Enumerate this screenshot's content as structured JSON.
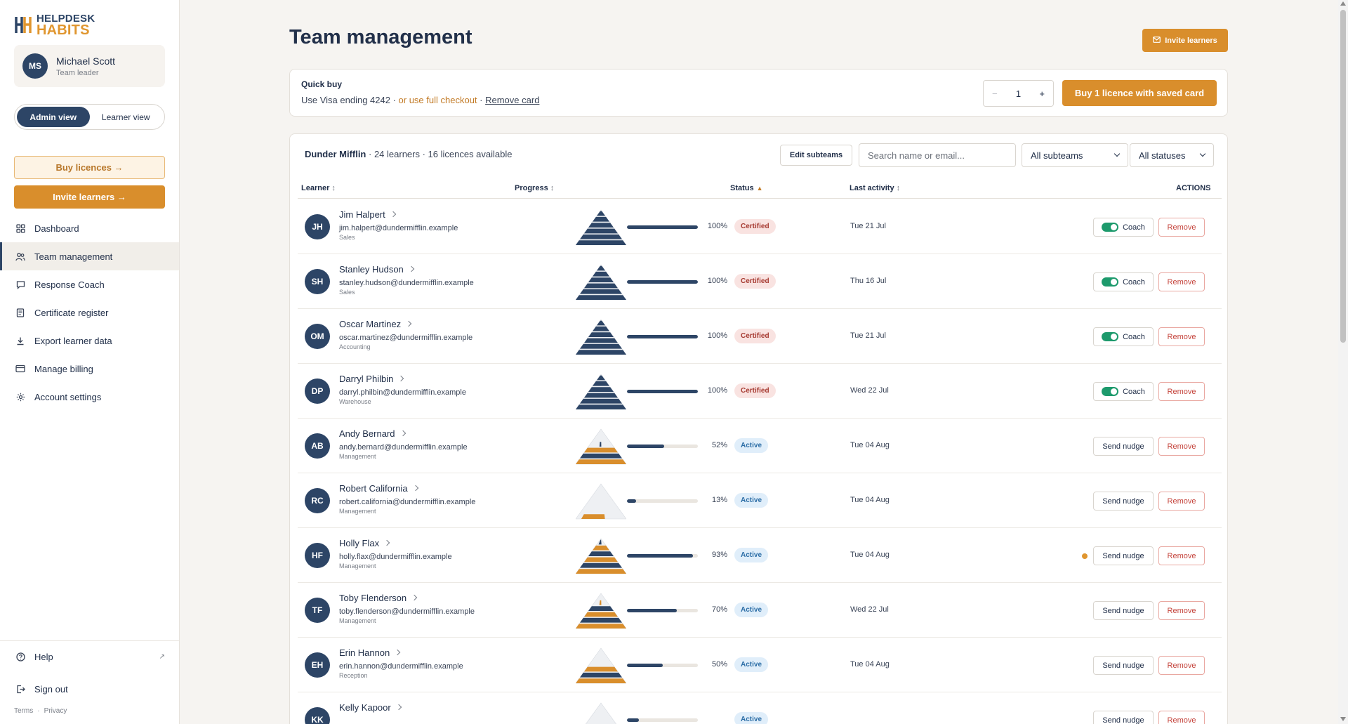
{
  "brand": {
    "line1": "HELPDESK",
    "line2": "HABITS"
  },
  "user": {
    "initials": "MS",
    "name": "Michael Scott",
    "role": "Team leader"
  },
  "view_toggle": {
    "admin": "Admin view",
    "learner": "Learner view",
    "selected": "admin"
  },
  "sidebar": {
    "buy_licences": "Buy licences →",
    "invite_learners": "Invite learners →",
    "items": [
      {
        "label": "Dashboard",
        "icon": "grid-icon"
      },
      {
        "label": "Team management",
        "icon": "users-icon",
        "active": true
      },
      {
        "label": "Response Coach",
        "icon": "chat-icon"
      },
      {
        "label": "Certificate register",
        "icon": "document-icon"
      },
      {
        "label": "Export learner data",
        "icon": "download-icon"
      },
      {
        "label": "Manage billing",
        "icon": "credit-card-icon"
      },
      {
        "label": "Account settings",
        "icon": "gear-icon"
      }
    ],
    "help": "Help",
    "sign_out": "Sign out",
    "terms": "Terms",
    "privacy": "Privacy",
    "footer_sep": "·"
  },
  "page": {
    "title": "Team management",
    "invite_button": "Invite learners"
  },
  "quick_buy": {
    "title": "Quick buy",
    "card_text": "Use Visa ending 4242 · ",
    "full_checkout": "or use full checkout",
    "sep": " · ",
    "remove_card": "Remove card",
    "quantity": "1",
    "minus": "−",
    "plus": "+",
    "buy_button": "Buy 1 licence with saved card"
  },
  "team": {
    "name": "Dunder Mifflin",
    "summary": " · 24 learners · 16 licences available",
    "edit_subteams": "Edit subteams",
    "search_placeholder": "Search name or email...",
    "subteam_filter": "All subteams",
    "status_filter": "All statuses"
  },
  "table": {
    "headers": {
      "learner": "Learner",
      "progress": "Progress",
      "status": "Status",
      "last_activity": "Last activity",
      "actions": "ACTIONS"
    },
    "sort_icon": "↕",
    "sort_up_icon": "▲",
    "coach_label": "Coach",
    "nudge_label": "Send nudge",
    "remove_label": "Remove",
    "rows": [
      {
        "initials": "JH",
        "name": "Jim Halpert",
        "email": "jim.halpert@dundermifflin.example",
        "team": "Sales",
        "progress": 100,
        "progress_label": "100%",
        "status": "Certified",
        "activity": "Tue 21 Jul",
        "coach": true
      },
      {
        "initials": "SH",
        "name": "Stanley Hudson",
        "email": "stanley.hudson@dundermifflin.example",
        "team": "Sales",
        "progress": 100,
        "progress_label": "100%",
        "status": "Certified",
        "activity": "Thu 16 Jul",
        "coach": true
      },
      {
        "initials": "OM",
        "name": "Oscar Martinez",
        "email": "oscar.martinez@dundermifflin.example",
        "team": "Accounting",
        "progress": 100,
        "progress_label": "100%",
        "status": "Certified",
        "activity": "Tue 21 Jul",
        "coach": true
      },
      {
        "initials": "DP",
        "name": "Darryl Philbin",
        "email": "darryl.philbin@dundermifflin.example",
        "team": "Warehouse",
        "progress": 100,
        "progress_label": "100%",
        "status": "Certified",
        "activity": "Wed 22 Jul",
        "coach": true
      },
      {
        "initials": "AB",
        "name": "Andy Bernard",
        "email": "andy.bernard@dundermifflin.example",
        "team": "Management",
        "progress": 52,
        "progress_label": "52%",
        "status": "Active",
        "activity": "Tue 04 Aug",
        "coach": false
      },
      {
        "initials": "RC",
        "name": "Robert California",
        "email": "robert.california@dundermifflin.example",
        "team": "Management",
        "progress": 13,
        "progress_label": "13%",
        "status": "Active",
        "activity": "Tue 04 Aug",
        "coach": false
      },
      {
        "initials": "HF",
        "name": "Holly Flax",
        "email": "holly.flax@dundermifflin.example",
        "team": "Management",
        "progress": 93,
        "progress_label": "93%",
        "status": "Active",
        "activity": "Tue 04 Aug",
        "coach": false,
        "flag": true
      },
      {
        "initials": "TF",
        "name": "Toby Flenderson",
        "email": "toby.flenderson@dundermifflin.example",
        "team": "Management",
        "progress": 70,
        "progress_label": "70%",
        "status": "Active",
        "activity": "Wed 22 Jul",
        "coach": false
      },
      {
        "initials": "EH",
        "name": "Erin Hannon",
        "email": "erin.hannon@dundermifflin.example",
        "team": "Reception",
        "progress": 50,
        "progress_label": "50%",
        "status": "Active",
        "activity": "Tue 04 Aug",
        "coach": false
      },
      {
        "initials": "KK",
        "name": "Kelly Kapoor",
        "email": "",
        "team": "",
        "progress": 17,
        "progress_label": "",
        "status": "Active",
        "activity": "",
        "coach": false
      }
    ]
  },
  "colors": {
    "navy": "#2d4566",
    "orange": "#d98e2c",
    "certified": "#a63a31",
    "active": "#2b6da6",
    "coach_on": "#1d9a6c"
  }
}
